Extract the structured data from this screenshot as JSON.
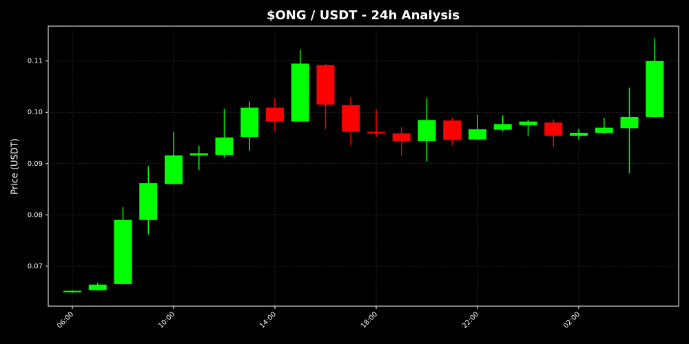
{
  "chart_data": {
    "type": "candlestick",
    "title": "$ONG / USDT - 24h Analysis",
    "y_label": "Price (USDT)",
    "categories": [
      "06:00",
      null,
      null,
      null,
      "10:00",
      null,
      null,
      null,
      "14:00",
      null,
      null,
      null,
      "18:00",
      null,
      null,
      null,
      "22:00",
      null,
      null,
      null,
      "02:00",
      null,
      null,
      null
    ],
    "open": [
      0.0649,
      0.0653,
      0.0665,
      0.079,
      0.086,
      0.0916,
      0.0917,
      0.0952,
      0.1009,
      0.0982,
      0.1092,
      0.1014,
      0.0962,
      0.0959,
      0.0944,
      0.0984,
      0.0947,
      0.0966,
      0.0975,
      0.098,
      0.0954,
      0.096,
      0.0969,
      0.0991
    ],
    "high": [
      0.0653,
      0.0668,
      0.0815,
      0.0895,
      0.0962,
      0.0935,
      0.1007,
      0.1021,
      0.1028,
      0.1121,
      0.1094,
      0.103,
      0.1006,
      0.0971,
      0.1028,
      0.0989,
      0.0995,
      0.0994,
      0.0985,
      0.0986,
      0.0968,
      0.0989,
      0.1048,
      0.1144
    ],
    "low": [
      0.0648,
      0.0652,
      0.0665,
      0.0762,
      0.0859,
      0.0887,
      0.0911,
      0.0925,
      0.0964,
      0.0982,
      0.0967,
      0.0936,
      0.0952,
      0.0915,
      0.0904,
      0.0935,
      0.0947,
      0.0962,
      0.0954,
      0.0932,
      0.0947,
      0.0958,
      0.0881,
      0.099
    ],
    "close": [
      0.0652,
      0.0664,
      0.079,
      0.0862,
      0.0916,
      0.092,
      0.0951,
      0.1009,
      0.0982,
      0.1095,
      0.1015,
      0.0962,
      0.096,
      0.0944,
      0.0985,
      0.0946,
      0.0967,
      0.0977,
      0.0982,
      0.0954,
      0.096,
      0.097,
      0.0991,
      0.11
    ],
    "up_color": "#00ff00",
    "down_color": "#ff0000",
    "ylim": [
      0.0622,
      0.1168
    ],
    "yticks": [
      0.07,
      0.08,
      0.09,
      {
        "value": 0.1,
        "label": "0.10"
      },
      0.11
    ],
    "grid": true
  }
}
